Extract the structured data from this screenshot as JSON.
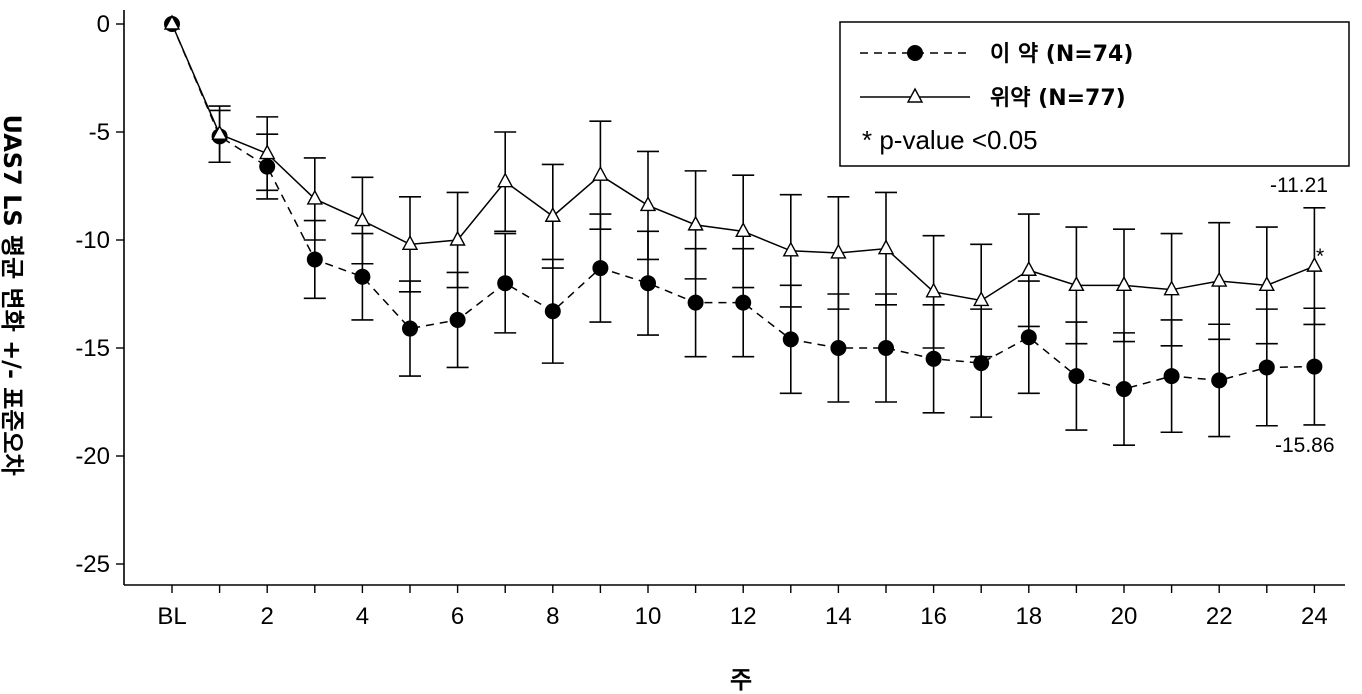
{
  "chart_data": {
    "type": "line",
    "xlabel": "주",
    "ylabel": "UAS7 LS 평균 변화 +/- 표준오차",
    "ylim": [
      -25,
      0
    ],
    "yticks": [
      "0",
      "-5",
      "-10",
      "-15",
      "-20",
      "-25"
    ],
    "xticks": [
      "BL",
      "2",
      "4",
      "6",
      "8",
      "10",
      "12",
      "14",
      "16",
      "18",
      "20",
      "22",
      "24"
    ],
    "x": [
      0,
      1,
      2,
      3,
      4,
      5,
      6,
      7,
      8,
      9,
      10,
      11,
      12,
      13,
      14,
      15,
      16,
      17,
      18,
      19,
      20,
      21,
      22,
      23,
      24
    ],
    "grid": false,
    "legend_position": "top-right",
    "series": [
      {
        "name": "이 약 (N=74)",
        "line": "dashed",
        "marker": "filled-circle",
        "values": [
          0,
          -5.2,
          -6.6,
          -10.9,
          -11.7,
          -14.1,
          -13.7,
          -12.0,
          -13.3,
          -11.3,
          -12.0,
          -12.9,
          -12.9,
          -14.6,
          -15.0,
          -15.0,
          -15.5,
          -15.7,
          -14.5,
          -16.3,
          -16.9,
          -16.3,
          -16.5,
          -15.9,
          -15.86
        ],
        "error": [
          0,
          1.2,
          1.5,
          1.8,
          2.0,
          2.2,
          2.2,
          2.3,
          2.4,
          2.5,
          2.4,
          2.5,
          2.5,
          2.5,
          2.5,
          2.5,
          2.5,
          2.5,
          2.6,
          2.5,
          2.6,
          2.6,
          2.6,
          2.7,
          2.7
        ]
      },
      {
        "name": "위약 (N=77)",
        "line": "solid",
        "marker": "open-triangle",
        "values": [
          0,
          -5.1,
          -6.0,
          -8.1,
          -9.1,
          -10.2,
          -10.0,
          -7.3,
          -8.9,
          -7.0,
          -8.4,
          -9.3,
          -9.6,
          -10.5,
          -10.6,
          -10.4,
          -12.4,
          -12.8,
          -11.4,
          -12.1,
          -12.1,
          -12.3,
          -11.9,
          -12.1,
          -11.21
        ],
        "error": [
          0,
          1.3,
          1.7,
          1.9,
          2.0,
          2.2,
          2.2,
          2.3,
          2.4,
          2.5,
          2.5,
          2.5,
          2.6,
          2.6,
          2.6,
          2.6,
          2.6,
          2.6,
          2.6,
          2.7,
          2.6,
          2.6,
          2.7,
          2.7,
          2.7
        ]
      }
    ],
    "annotations": {
      "placebo_end_value": "-11.21",
      "drug_end_value": "-15.86",
      "significance_mark": "*",
      "note": "* p-value <0.05"
    }
  }
}
